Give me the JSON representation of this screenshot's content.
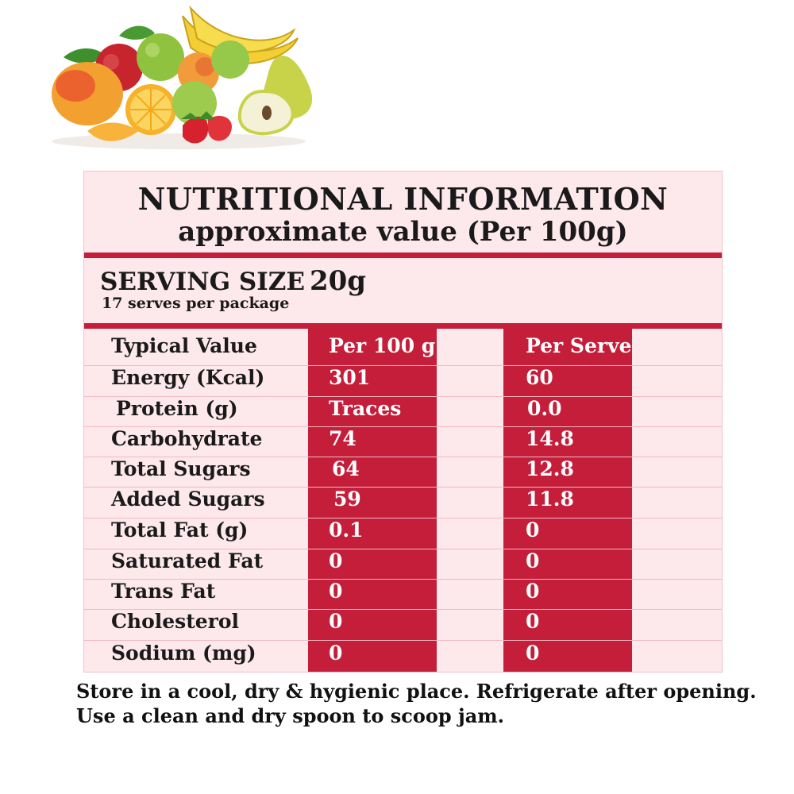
{
  "colors": {
    "accent_red": "#c41e3a",
    "panel_pink": "#fde8ec",
    "row_line": "#f2b9c3"
  },
  "header": {
    "title": "NUTRITIONAL INFORMATION",
    "subtitle": "approximate value (Per 100g)"
  },
  "serving": {
    "label": "SERVING SIZE",
    "size": "20g",
    "serves_note": "17 serves per package"
  },
  "table": {
    "header": {
      "label": "Typical Value",
      "per100": "Per 100 g",
      "perServe": "Per Serve"
    },
    "rows": [
      {
        "label": "Energy (Kcal)",
        "per100": "301",
        "perServe": "60"
      },
      {
        "label": "Protein (g)",
        "per100": "Traces",
        "perServe": "0.0"
      },
      {
        "label": "Carbohydrate",
        "per100": "74",
        "perServe": "14.8"
      },
      {
        "label": "Total Sugars",
        "per100": "64",
        "perServe": "12.8"
      },
      {
        "label": "Added Sugars",
        "per100": "59",
        "perServe": "11.8"
      },
      {
        "label": "Total Fat (g)",
        "per100": "0.1",
        "perServe": "0"
      },
      {
        "label": "Saturated Fat",
        "per100": "0",
        "perServe": "0"
      },
      {
        "label": "Trans Fat",
        "per100": "0",
        "perServe": "0"
      },
      {
        "label": "Cholesterol",
        "per100": "0",
        "perServe": "0"
      },
      {
        "label": "Sodium (mg)",
        "per100": "0",
        "perServe": "0"
      }
    ]
  },
  "footer": {
    "line1": "Store in a cool, dry & hygienic place. Refrigerate after opening.",
    "line2": "Use a clean and dry spoon to scoop jam."
  }
}
